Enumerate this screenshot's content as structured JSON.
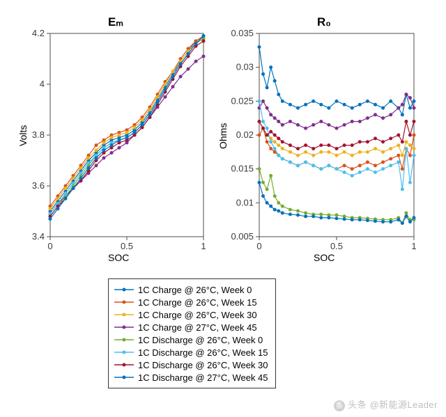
{
  "background_color": "#ffffff",
  "axis_box_color": "#4d4d4d",
  "grid_color": "#f0f0f0",
  "tick_font_size": 13,
  "title_font_size": 17,
  "label_font_size": 14,
  "marker_style": "dot",
  "marker_size": 2.5,
  "line_width": 1.2,
  "series_meta": [
    {
      "label": "1C Charge @ 26°C, Week 0",
      "color": "#0072bd"
    },
    {
      "label": "1C Charge @ 26°C, Week 15",
      "color": "#d95319"
    },
    {
      "label": "1C Charge @ 26°C, Week 30",
      "color": "#edb120"
    },
    {
      "label": "1C Charge @ 27°C, Week 45",
      "color": "#7e2f8e"
    },
    {
      "label": "1C Discharge @ 26°C, Week 0",
      "color": "#77ac30"
    },
    {
      "label": "1C Discharge @ 26°C, Week 15",
      "color": "#4dbeee"
    },
    {
      "label": "1C Discharge @ 26°C, Week 30",
      "color": "#a2142f"
    },
    {
      "label": "1C Discharge @ 27°C, Week 45",
      "color": "#0072bd"
    }
  ],
  "left_chart": {
    "title": "Eₘ",
    "title_sub": "m",
    "xlabel": "SOC",
    "ylabel": "Volts",
    "xlim": [
      0,
      1
    ],
    "ylim": [
      3.4,
      4.2
    ],
    "xticks": [
      0,
      0.5,
      1
    ],
    "yticks": [
      3.4,
      3.6,
      3.8,
      4.0,
      4.2
    ],
    "ytick_labels": [
      "3.4",
      "3.6",
      "3.8",
      "4",
      "4.2"
    ],
    "x_values": [
      0,
      0.05,
      0.1,
      0.15,
      0.2,
      0.25,
      0.3,
      0.35,
      0.4,
      0.45,
      0.5,
      0.55,
      0.6,
      0.65,
      0.7,
      0.75,
      0.8,
      0.85,
      0.9,
      0.95,
      1.0
    ],
    "series": [
      {
        "color": "#0072bd",
        "y": [
          3.5,
          3.54,
          3.58,
          3.62,
          3.66,
          3.7,
          3.73,
          3.76,
          3.78,
          3.79,
          3.8,
          3.82,
          3.85,
          3.89,
          3.94,
          3.99,
          4.04,
          4.09,
          4.13,
          4.17,
          4.19
        ]
      },
      {
        "color": "#d95319",
        "y": [
          3.52,
          3.56,
          3.6,
          3.64,
          3.68,
          3.72,
          3.76,
          3.78,
          3.8,
          3.81,
          3.82,
          3.84,
          3.87,
          3.91,
          3.96,
          4.01,
          4.05,
          4.1,
          4.14,
          4.17,
          4.19
        ]
      },
      {
        "color": "#edb120",
        "y": [
          3.51,
          3.55,
          3.59,
          3.63,
          3.67,
          3.71,
          3.74,
          3.77,
          3.79,
          3.8,
          3.81,
          3.83,
          3.86,
          3.9,
          3.95,
          4.0,
          4.05,
          4.09,
          4.13,
          4.16,
          4.18
        ]
      },
      {
        "color": "#7e2f8e",
        "y": [
          3.49,
          3.53,
          3.56,
          3.59,
          3.62,
          3.65,
          3.68,
          3.71,
          3.73,
          3.75,
          3.77,
          3.8,
          3.83,
          3.87,
          3.91,
          3.95,
          3.99,
          4.03,
          4.06,
          4.09,
          4.11
        ]
      },
      {
        "color": "#77ac30",
        "y": [
          3.48,
          3.52,
          3.56,
          3.6,
          3.64,
          3.68,
          3.72,
          3.75,
          3.77,
          3.78,
          3.79,
          3.81,
          3.84,
          3.88,
          3.93,
          3.98,
          4.03,
          4.08,
          4.12,
          4.16,
          4.18
        ]
      },
      {
        "color": "#4dbeee",
        "y": [
          3.49,
          3.53,
          3.57,
          3.61,
          3.65,
          3.69,
          3.72,
          3.75,
          3.77,
          3.78,
          3.79,
          3.81,
          3.84,
          3.88,
          3.93,
          3.98,
          4.03,
          4.08,
          4.12,
          4.16,
          4.19
        ]
      },
      {
        "color": "#a2142f",
        "y": [
          3.48,
          3.52,
          3.55,
          3.59,
          3.62,
          3.66,
          3.7,
          3.73,
          3.75,
          3.77,
          3.78,
          3.8,
          3.83,
          3.87,
          3.92,
          3.97,
          4.02,
          4.07,
          4.11,
          4.15,
          4.17
        ]
      },
      {
        "color": "#0072bd",
        "y": [
          3.47,
          3.51,
          3.55,
          3.59,
          3.63,
          3.67,
          3.71,
          3.74,
          3.76,
          3.78,
          3.79,
          3.81,
          3.84,
          3.88,
          3.93,
          3.98,
          4.03,
          4.08,
          4.12,
          4.16,
          4.19
        ]
      }
    ]
  },
  "right_chart": {
    "title": "R₀",
    "title_sub": "0",
    "xlabel": "SOC",
    "ylabel": "Ohms",
    "xlim": [
      0,
      1
    ],
    "ylim": [
      0.005,
      0.035
    ],
    "xticks": [
      0,
      0.5,
      1
    ],
    "yticks": [
      0.005,
      0.01,
      0.015,
      0.02,
      0.025,
      0.03,
      0.035
    ],
    "ytick_labels": [
      "0.005",
      "0.01",
      "0.015",
      "0.02",
      "0.025",
      "0.03",
      "0.035"
    ],
    "x_values": [
      0,
      0.025,
      0.05,
      0.075,
      0.1,
      0.125,
      0.15,
      0.2,
      0.25,
      0.3,
      0.35,
      0.4,
      0.45,
      0.5,
      0.55,
      0.6,
      0.65,
      0.7,
      0.75,
      0.8,
      0.85,
      0.9,
      0.925,
      0.95,
      0.975,
      1.0
    ],
    "series": [
      {
        "color": "#0072bd",
        "y": [
          0.033,
          0.029,
          0.027,
          0.03,
          0.028,
          0.026,
          0.025,
          0.0245,
          0.024,
          0.0245,
          0.025,
          0.0245,
          0.024,
          0.025,
          0.0245,
          0.024,
          0.0245,
          0.025,
          0.0245,
          0.024,
          0.025,
          0.024,
          0.023,
          0.026,
          0.024,
          0.025
        ]
      },
      {
        "color": "#d95319",
        "y": [
          0.02,
          0.021,
          0.019,
          0.018,
          0.0175,
          0.017,
          0.0165,
          0.016,
          0.0155,
          0.016,
          0.0155,
          0.015,
          0.0155,
          0.015,
          0.0155,
          0.015,
          0.0155,
          0.016,
          0.0155,
          0.016,
          0.0165,
          0.017,
          0.015,
          0.018,
          0.017,
          0.02
        ]
      },
      {
        "color": "#edb120",
        "y": [
          0.022,
          0.021,
          0.02,
          0.0195,
          0.019,
          0.0185,
          0.018,
          0.0175,
          0.017,
          0.0175,
          0.017,
          0.0175,
          0.0175,
          0.017,
          0.0175,
          0.017,
          0.0175,
          0.0175,
          0.018,
          0.0175,
          0.018,
          0.0185,
          0.017,
          0.019,
          0.0185,
          0.018
        ]
      },
      {
        "color": "#7e2f8e",
        "y": [
          0.024,
          0.025,
          0.024,
          0.023,
          0.0225,
          0.022,
          0.0215,
          0.022,
          0.0215,
          0.021,
          0.0215,
          0.022,
          0.0215,
          0.021,
          0.0215,
          0.022,
          0.022,
          0.0225,
          0.023,
          0.0225,
          0.023,
          0.024,
          0.0245,
          0.026,
          0.0255,
          0.024
        ]
      },
      {
        "color": "#77ac30",
        "y": [
          0.015,
          0.013,
          0.012,
          0.014,
          0.011,
          0.01,
          0.0095,
          0.009,
          0.0088,
          0.0085,
          0.0083,
          0.0083,
          0.0082,
          0.0082,
          0.008,
          0.0078,
          0.0078,
          0.0077,
          0.0076,
          0.0075,
          0.0075,
          0.0078,
          0.007,
          0.0085,
          0.0075,
          0.0075
        ]
      },
      {
        "color": "#4dbeee",
        "y": [
          0.025,
          0.022,
          0.021,
          0.019,
          0.018,
          0.017,
          0.0165,
          0.016,
          0.0155,
          0.016,
          0.0155,
          0.015,
          0.0155,
          0.015,
          0.0145,
          0.014,
          0.0145,
          0.015,
          0.0145,
          0.015,
          0.0155,
          0.016,
          0.012,
          0.018,
          0.013,
          0.017
        ]
      },
      {
        "color": "#a2142f",
        "y": [
          0.022,
          0.021,
          0.02,
          0.0205,
          0.02,
          0.0195,
          0.019,
          0.0185,
          0.018,
          0.0185,
          0.018,
          0.0185,
          0.0185,
          0.018,
          0.0185,
          0.0185,
          0.019,
          0.019,
          0.0195,
          0.019,
          0.0195,
          0.02,
          0.019,
          0.022,
          0.02,
          0.022
        ]
      },
      {
        "color": "#0072bd",
        "y": [
          0.013,
          0.011,
          0.01,
          0.0095,
          0.009,
          0.0088,
          0.0085,
          0.0083,
          0.0082,
          0.008,
          0.008,
          0.0078,
          0.0078,
          0.0077,
          0.0076,
          0.0075,
          0.0075,
          0.0074,
          0.0073,
          0.0072,
          0.0072,
          0.0075,
          0.007,
          0.008,
          0.0072,
          0.0078
        ]
      }
    ]
  },
  "watermark": {
    "prefix": "头条",
    "account": "@新能源Leader"
  }
}
